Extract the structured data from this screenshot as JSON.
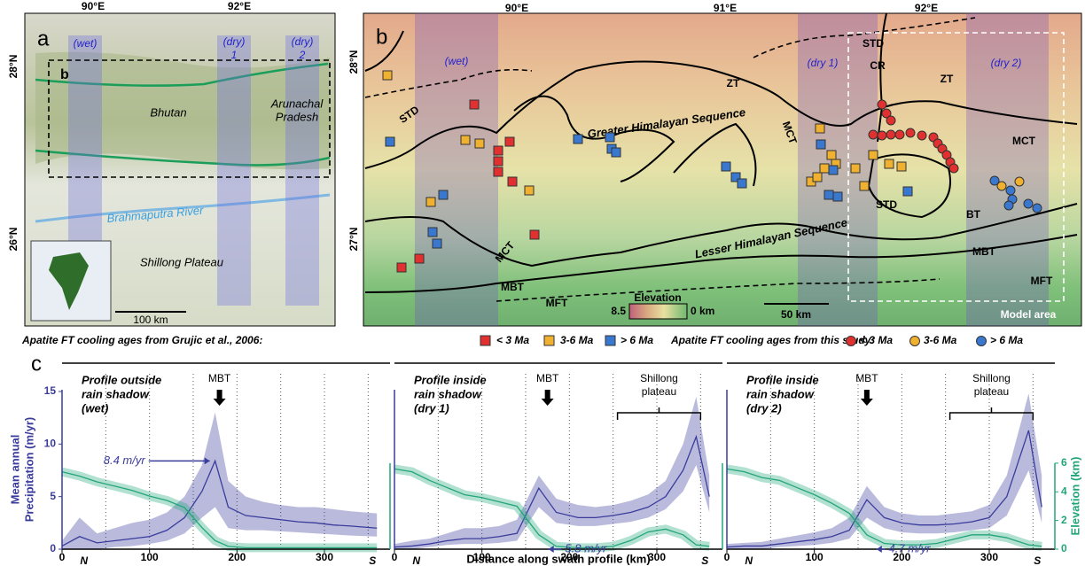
{
  "map_a": {
    "label": "a",
    "lon_labels": [
      "90°E",
      "92°E"
    ],
    "lat_labels": [
      "28°N",
      "26°N"
    ],
    "swaths": [
      "(wet)",
      "(dry)",
      "1",
      "(dry)",
      "2"
    ],
    "box_label": "b",
    "places": {
      "bhutan": "Bhutan",
      "arunachal": [
        "Arunachal",
        "Pradesh"
      ],
      "river": "Brahmaputra River",
      "plateau": "Shillong Plateau"
    },
    "scale": "100 km"
  },
  "map_b": {
    "label": "b",
    "lon_labels": [
      "90°E",
      "91°E",
      "92°E"
    ],
    "lat_labels": [
      "28°N",
      "27°N"
    ],
    "swaths": [
      "(wet)",
      "(dry 1)",
      "(dry 2)"
    ],
    "structures": [
      "STD",
      "ZT",
      "Greater Himalayan Sequence",
      "MCT",
      "STD",
      "CR",
      "ZT",
      "MCT",
      "STD",
      "BT",
      "MBT",
      "MFT",
      "MCT",
      "MBT",
      "MFT",
      "Lesser Himalayan Sequence"
    ],
    "elevation_legend": {
      "title": "Elevation",
      "max": "8.5",
      "min": "0 km"
    },
    "scale": "50 km",
    "model_area": "Model area"
  },
  "legend": {
    "grujic_title": "Apatite FT cooling ages from Grujic et al., 2006:",
    "grujic": [
      "< 3 Ma",
      "3-6 Ma",
      "> 6 Ma"
    ],
    "study_title": "Apatite FT cooling ages from this study:",
    "study": [
      "< 3 Ma",
      "3-6 Ma",
      "> 6 Ma"
    ]
  },
  "panel_c": {
    "label": "c",
    "x_label": "Distance along swath profile (km)",
    "y_label": [
      "Mean annual",
      "Precipitation (m/yr)"
    ],
    "y2_label": "Elevation (km)"
  },
  "chart_data": [
    {
      "type": "line",
      "title": [
        "Profile outside",
        "rain shadow",
        "(wet)"
      ],
      "ends": [
        "N",
        "S"
      ],
      "mbt": "MBT",
      "rate": "8.4 m/yr",
      "x": [
        0,
        20,
        40,
        60,
        80,
        100,
        120,
        140,
        160,
        175,
        190,
        210,
        230,
        250,
        270,
        290,
        310,
        330,
        360
      ],
      "xlim": [
        0,
        375
      ],
      "xticks": [
        0,
        100,
        200,
        300
      ],
      "xminor": [
        50,
        150,
        250,
        350
      ],
      "grid": true,
      "ylim": [
        0,
        15
      ],
      "yticks": [
        0,
        5,
        10,
        15
      ],
      "y2lim": [
        0,
        11
      ],
      "series": [
        {
          "color": "#3a3c9c",
          "values": [
            0.3,
            1.2,
            0.6,
            0.8,
            1,
            1.2,
            1.8,
            3,
            5.5,
            8.4,
            4,
            3.2,
            3,
            2.8,
            2.6,
            2.5,
            2.3,
            2.2,
            2
          ],
          "upper": [
            0.8,
            3,
            1.5,
            2,
            2.5,
            2.8,
            3.5,
            5,
            8,
            13,
            6.5,
            5,
            4.5,
            4.2,
            4,
            4,
            3.8,
            3.6,
            3.4
          ],
          "lower": [
            0,
            0,
            0,
            0.2,
            0.3,
            0.5,
            0.8,
            1.5,
            3,
            4,
            2,
            1.8,
            1.8,
            1.7,
            1.6,
            1.5,
            1.4,
            1.3,
            1.2
          ]
        },
        {
          "color": "#22a57a",
          "axis": "y2",
          "values": [
            5.4,
            5.1,
            4.7,
            4.4,
            4.1,
            3.7,
            3.4,
            2.9,
            1.5,
            0.6,
            0.2,
            0.1,
            0.1,
            0.1,
            0.1,
            0.1,
            0.1,
            0.1,
            0.1
          ]
        }
      ]
    },
    {
      "type": "line",
      "title": [
        "Profile inside",
        "rain shadow",
        "(dry 1)"
      ],
      "ends": [
        "N",
        "S"
      ],
      "mbt": "MBT",
      "rate": "5.8 m/yr",
      "plateau": [
        "Shillong",
        "plateau"
      ],
      "x": [
        0,
        20,
        40,
        60,
        80,
        100,
        120,
        140,
        165,
        185,
        210,
        230,
        250,
        270,
        290,
        310,
        330,
        345,
        360
      ],
      "xlim": [
        0,
        375
      ],
      "xticks": [
        0,
        100,
        200,
        300
      ],
      "xminor": [
        50,
        150,
        250,
        350
      ],
      "grid": true,
      "ylim": [
        0,
        15
      ],
      "y2lim": [
        0,
        11
      ],
      "series": [
        {
          "color": "#3a3c9c",
          "values": [
            0.2,
            0.3,
            0.5,
            0.8,
            1,
            1,
            1.2,
            1.5,
            5.8,
            3.5,
            3,
            3,
            3.2,
            3.5,
            4,
            5,
            7.5,
            10.7,
            5
          ],
          "upper": [
            0.5,
            0.8,
            1,
            1.5,
            2,
            2,
            2.2,
            2.8,
            7,
            4.8,
            4.2,
            4,
            4.2,
            4.6,
            5.2,
            6.5,
            10,
            14.5,
            7
          ],
          "lower": [
            0,
            0,
            0.2,
            0.4,
            0.5,
            0.5,
            0.6,
            0.8,
            4,
            2.5,
            2.2,
            2.2,
            2.4,
            2.6,
            3,
            3.8,
            5.5,
            8,
            3.5
          ]
        },
        {
          "color": "#22a57a",
          "axis": "y2",
          "values": [
            5.6,
            5.4,
            4.8,
            4.3,
            3.8,
            3.6,
            3.3,
            3,
            1,
            0.2,
            0.1,
            0.1,
            0.2,
            0.6,
            1.2,
            1.4,
            1,
            0.3,
            0.2
          ]
        }
      ]
    },
    {
      "type": "line",
      "title": [
        "Profile inside",
        "rain shadow",
        "(dry 2)"
      ],
      "ends": [
        "N",
        "S"
      ],
      "mbt": "MBT",
      "rate": "4.7 m/yr",
      "plateau": [
        "Shillong",
        "plateau"
      ],
      "x": [
        0,
        20,
        40,
        60,
        80,
        100,
        120,
        140,
        160,
        180,
        200,
        220,
        240,
        260,
        280,
        300,
        320,
        345,
        360
      ],
      "xlim": [
        0,
        375
      ],
      "xticks": [
        0,
        100,
        200,
        300
      ],
      "xminor": [
        50,
        150,
        250,
        350
      ],
      "grid": true,
      "ylim": [
        0,
        15
      ],
      "y2lim": [
        0,
        11
      ],
      "y2ticks": [
        0,
        2,
        4,
        6
      ],
      "series": [
        {
          "color": "#3a3c9c",
          "values": [
            0.2,
            0.3,
            0.3,
            0.5,
            0.7,
            0.9,
            1.2,
            1.8,
            4.7,
            3,
            2.5,
            2.3,
            2.3,
            2.4,
            2.6,
            3,
            5,
            11.3,
            4
          ],
          "upper": [
            0.5,
            0.6,
            0.7,
            1,
            1.3,
            1.6,
            2,
            3,
            6,
            4,
            3.4,
            3.2,
            3.2,
            3.4,
            3.6,
            4.2,
            7,
            14.8,
            7
          ],
          "lower": [
            0,
            0,
            0,
            0.2,
            0.3,
            0.4,
            0.6,
            1,
            3,
            2,
            1.6,
            1.5,
            1.5,
            1.6,
            1.8,
            2,
            3.2,
            7.5,
            2.5
          ]
        },
        {
          "color": "#22a57a",
          "axis": "y2",
          "values": [
            5.6,
            5.4,
            5,
            4.8,
            4.3,
            3.8,
            3.2,
            2.5,
            1,
            0.4,
            0.3,
            0.3,
            0.4,
            0.7,
            1,
            1,
            0.8,
            0.3,
            0.2
          ]
        }
      ]
    }
  ]
}
